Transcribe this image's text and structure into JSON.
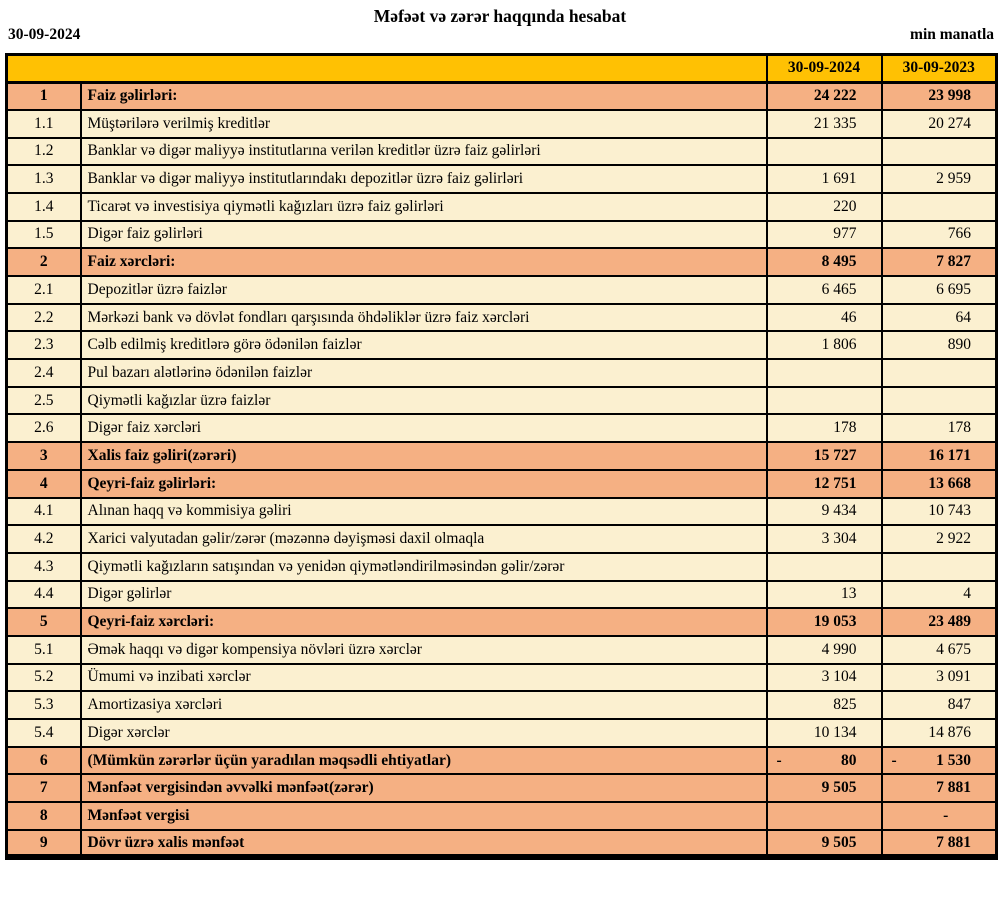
{
  "page": {
    "title": "Məfəət və zərər haqqında hesabat",
    "report_date": "30-09-2024",
    "unit_label": "min manatla"
  },
  "table": {
    "columns": {
      "col_2024": "30-09-2024",
      "col_2023": "30-09-2023"
    },
    "colors": {
      "header_bg": "#FFC103",
      "section_row_bg": "#F5B083",
      "detail_row_bg": "#FBF0D0",
      "border": "#000000"
    },
    "rows": [
      {
        "no": "1",
        "label": "Faiz gəlirləri:",
        "bold": true,
        "y2024": "24 222",
        "y2023": "23 998"
      },
      {
        "no": "1.1",
        "label": "Müştərilərə verilmiş kreditlər",
        "bold": false,
        "y2024": "21 335",
        "y2023": "20 274"
      },
      {
        "no": "1.2",
        "label": "Banklar və digər maliyyə institutlarına verilən kreditlər üzrə faiz gəlirləri",
        "bold": false,
        "y2024": "",
        "y2023": ""
      },
      {
        "no": "1.3",
        "label": "Banklar və digər maliyyə institutlarındakı depozitlər üzrə faiz gəlirləri",
        "bold": false,
        "y2024": "1 691",
        "y2023": "2 959"
      },
      {
        "no": "1.4",
        "label": "Ticarət və investisiya qiymətli kağızları üzrə faiz gəlirləri",
        "bold": false,
        "y2024": "220",
        "y2023": ""
      },
      {
        "no": "1.5",
        "label": "Digər faiz gəlirləri",
        "bold": false,
        "y2024": "977",
        "y2023": "766"
      },
      {
        "no": "2",
        "label": "Faiz xərcləri:",
        "bold": true,
        "y2024": "8 495",
        "y2023": "7 827"
      },
      {
        "no": "2.1",
        "label": "Depozitlər üzrə faizlər",
        "bold": false,
        "y2024": "6 465",
        "y2023": "6 695"
      },
      {
        "no": "2.2",
        "label": "Mərkəzi bank və dövlət fondları qarşısında öhdəliklər üzrə faiz xərcləri",
        "bold": false,
        "y2024": "46",
        "y2023": "64"
      },
      {
        "no": "2.3",
        "label": "Cəlb edilmiş kreditlərə görə ödənilən faizlər",
        "bold": false,
        "y2024": "1 806",
        "y2023": "890"
      },
      {
        "no": "2.4",
        "label": "Pul bazarı alətlərinə ödənilən faizlər",
        "bold": false,
        "y2024": "",
        "y2023": ""
      },
      {
        "no": "2.5",
        "label": "Qiymətli kağızlar üzrə faizlər",
        "bold": false,
        "y2024": "",
        "y2023": ""
      },
      {
        "no": "2.6",
        "label": "Digər faiz xərcləri",
        "bold": false,
        "y2024": "178",
        "y2023": "178"
      },
      {
        "no": "3",
        "label": "Xalis faiz gəliri(zərəri)",
        "bold": true,
        "y2024": "15 727",
        "y2023": "16 171"
      },
      {
        "no": "4",
        "label": "Qeyri-faiz gəlirləri:",
        "bold": true,
        "y2024": "12 751",
        "y2023": "13 668"
      },
      {
        "no": "4.1",
        "label": "Alınan haqq və kommisiya gəliri",
        "bold": false,
        "y2024": "9 434",
        "y2023": "10 743"
      },
      {
        "no": "4.2",
        "label": "Xarici valyutadan gəlir/zərər (məzənnə dəyişməsi daxil olmaqla",
        "bold": false,
        "y2024": "3 304",
        "y2023": "2 922"
      },
      {
        "no": "4.3",
        "label": "Qiymətli kağızların satışından və yenidən qiymətləndirilməsindən gəlir/zərər",
        "bold": false,
        "y2024": "",
        "y2023": ""
      },
      {
        "no": "4.4",
        "label": "Digər gəlirlər",
        "bold": false,
        "y2024": "13",
        "y2023": "4"
      },
      {
        "no": "5",
        "label": "Qeyri-faiz xərcləri:",
        "bold": true,
        "y2024": "19 053",
        "y2023": "23 489"
      },
      {
        "no": "5.1",
        "label": "Əmək haqqı və digər kompensiya növləri üzrə xərclər",
        "bold": false,
        "y2024": "4 990",
        "y2023": "4 675"
      },
      {
        "no": "5.2",
        "label": "Ümumi və inzibati xərclər",
        "bold": false,
        "y2024": "3 104",
        "y2023": "3 091"
      },
      {
        "no": "5.3",
        "label": "Amortizasiya xərcləri",
        "bold": false,
        "y2024": "825",
        "y2023": "847"
      },
      {
        "no": "5.4",
        "label": "Digər xərclər",
        "bold": false,
        "y2024": "10 134",
        "y2023": "14 876"
      },
      {
        "no": "6",
        "label": "(Mümkün zərərlər üçün yaradılan məqsədli ehtiyatlar)",
        "bold": true,
        "y2024": "80",
        "y2023": "1 530",
        "neg2024": true,
        "neg2023": true
      },
      {
        "no": "7",
        "label": "Mənfəət vergisindən əvvəlki mənfəət(zərər)",
        "bold": true,
        "y2024": "9 505",
        "y2023": "7 881"
      },
      {
        "no": "8",
        "label": "Mənfəət vergisi",
        "bold": true,
        "y2024": "",
        "y2023": "-",
        "dash2023": true
      },
      {
        "no": "9",
        "label": "Dövr üzrə xalis mənfəət",
        "bold": true,
        "y2024": "9 505",
        "y2023": "7 881"
      }
    ]
  }
}
